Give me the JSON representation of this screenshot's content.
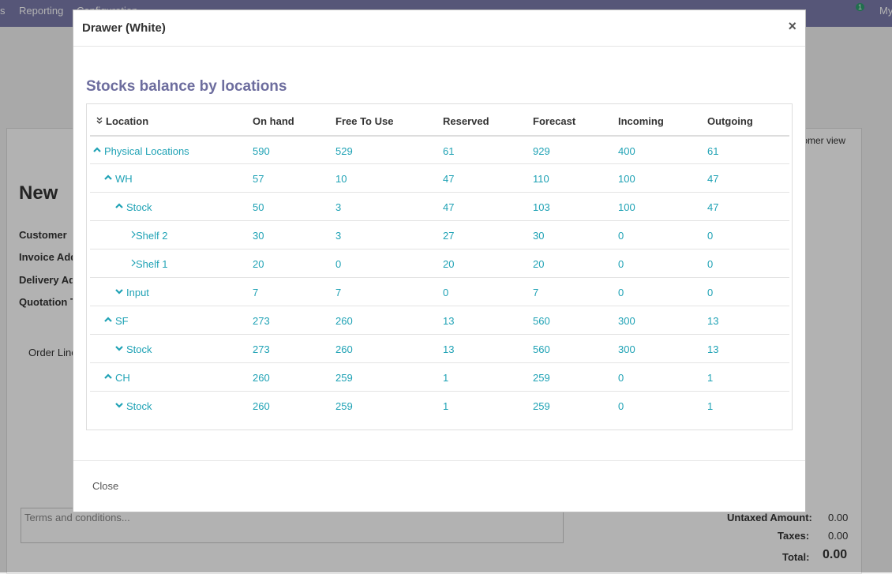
{
  "background": {
    "nav": [
      "s",
      "Reporting",
      "Configuration"
    ],
    "badge": "1",
    "user": "My",
    "form_title": "New",
    "fields": [
      "Customer",
      "Invoice Add",
      "Delivery Ad",
      "Quotation T"
    ],
    "tab": "Order Line",
    "side": "tomer view",
    "terms": "Terms and conditions...",
    "totals": [
      {
        "label": "Untaxed Amount:",
        "value": "0.00"
      },
      {
        "label": "Taxes:",
        "value": "0.00"
      },
      {
        "label": "Total:",
        "value": "0.00"
      }
    ]
  },
  "modal": {
    "title": "Drawer (White)",
    "close_icon": "×",
    "heading": "Stocks balance by locations",
    "close_button": "Close",
    "table": {
      "columns": [
        "Location",
        "On hand",
        "Free To Use",
        "Reserved",
        "Forecast",
        "Incoming",
        "Outgoing"
      ],
      "rows": [
        {
          "name": "Physical Locations",
          "icon": "up",
          "values": [
            590,
            529,
            61,
            929,
            400,
            61
          ],
          "children": [
            {
              "name": "WH",
              "icon": "up",
              "values": [
                57,
                10,
                47,
                110,
                100,
                47
              ],
              "children": [
                {
                  "name": "Stock",
                  "icon": "up",
                  "values": [
                    50,
                    3,
                    47,
                    103,
                    100,
                    47
                  ],
                  "children": [
                    {
                      "name": "Shelf 2",
                      "icon": "right",
                      "values": [
                        30,
                        3,
                        27,
                        30,
                        0,
                        0
                      ]
                    },
                    {
                      "name": "Shelf 1",
                      "icon": "right",
                      "values": [
                        20,
                        0,
                        20,
                        20,
                        0,
                        0
                      ]
                    }
                  ]
                },
                {
                  "name": "Input",
                  "icon": "down",
                  "values": [
                    7,
                    7,
                    0,
                    7,
                    0,
                    0
                  ]
                }
              ]
            },
            {
              "name": "SF",
              "icon": "up",
              "values": [
                273,
                260,
                13,
                560,
                300,
                13
              ],
              "children": [
                {
                  "name": "Stock",
                  "icon": "down",
                  "values": [
                    273,
                    260,
                    13,
                    560,
                    300,
                    13
                  ]
                }
              ]
            },
            {
              "name": "CH",
              "icon": "up",
              "values": [
                260,
                259,
                1,
                259,
                0,
                1
              ],
              "children": [
                {
                  "name": "Stock",
                  "icon": "down",
                  "values": [
                    260,
                    259,
                    1,
                    259,
                    0,
                    1
                  ]
                }
              ]
            }
          ]
        }
      ]
    }
  }
}
